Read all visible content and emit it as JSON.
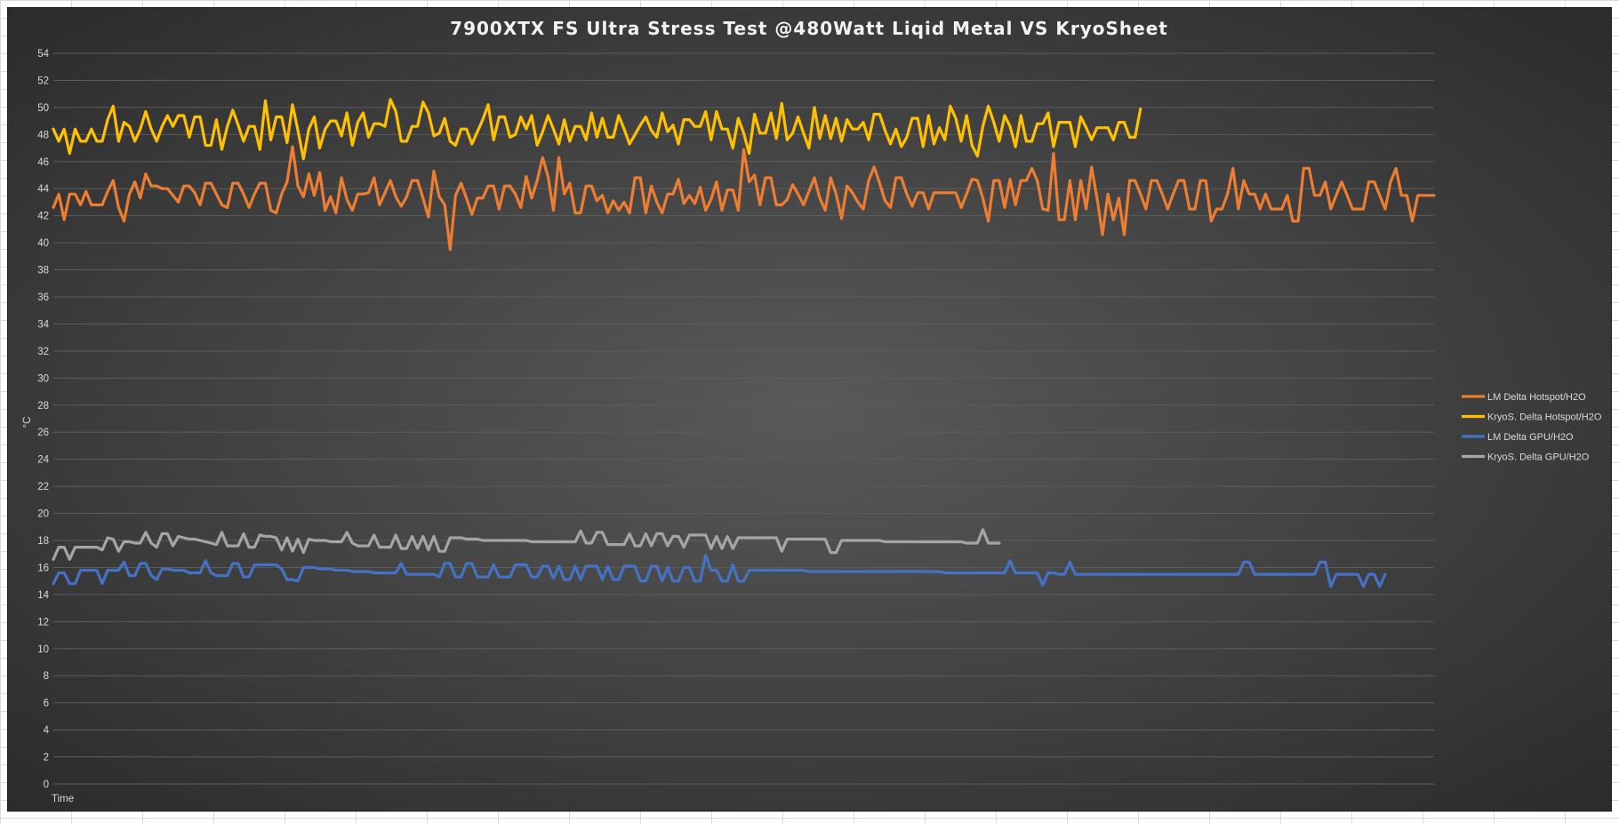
{
  "chart_data": {
    "type": "line",
    "title": "7900XTX FS Ultra Stress Test @480Watt Liqid Metal VS KryoSheet",
    "xlabel": "Time",
    "ylabel": "°C",
    "ylim": [
      0,
      54
    ],
    "ytick_step": 2,
    "grid": true,
    "legend_position": "right",
    "series": [
      {
        "name": "LM Delta Hotspot/H2O",
        "color": "#ed7d31",
        "values": [
          42.6,
          43.6,
          41.7,
          43.6,
          43.6,
          42.8,
          43.8,
          42.8,
          42.8,
          42.8,
          43.8,
          44.6,
          42.6,
          41.6,
          43.6,
          44.5,
          43.3,
          45.1,
          44.2,
          44.2,
          44.0,
          44.0,
          43.5,
          43.0,
          44.2,
          44.2,
          43.7,
          42.8,
          44.4,
          44.4,
          43.6,
          42.8,
          42.6,
          44.4,
          44.4,
          43.6,
          42.6,
          43.6,
          44.4,
          44.4,
          42.4,
          42.2,
          43.6,
          44.5,
          47.1,
          44.2,
          43.4,
          45.1,
          43.5,
          45.2,
          42.4,
          43.4,
          42.2,
          44.8,
          43.2,
          42.4,
          43.6,
          43.6,
          43.7,
          44.8,
          42.8,
          43.7,
          44.6,
          43.4,
          42.7,
          43.4,
          44.6,
          44.6,
          43.3,
          41.9,
          45.3,
          43.4,
          42.8,
          39.5,
          43.5,
          44.4,
          43.3,
          42.1,
          43.3,
          43.3,
          44.2,
          44.2,
          42.5,
          44.2,
          44.2,
          43.6,
          42.6,
          44.9,
          43.3,
          44.6,
          46.3,
          44.9,
          42.4,
          46.3,
          43.6,
          44.4,
          42.2,
          42.2,
          44.2,
          44.2,
          43.1,
          43.5,
          42.2,
          43.1,
          42.4,
          43.0,
          42.2,
          44.8,
          44.8,
          42.2,
          44.2,
          43.0,
          42.2,
          43.6,
          43.6,
          44.7,
          42.9,
          43.5,
          42.9,
          44.1,
          42.4,
          43.2,
          44.5,
          42.4,
          43.9,
          43.9,
          42.4,
          46.9,
          44.5,
          45.0,
          42.8,
          44.8,
          44.8,
          42.8,
          42.8,
          43.2,
          44.3,
          43.6,
          42.8,
          43.8,
          44.8,
          43.3,
          42.4,
          44.8,
          43.6,
          41.8,
          44.2,
          43.7,
          43.0,
          42.5,
          44.6,
          45.6,
          44.4,
          43.1,
          42.6,
          44.8,
          44.8,
          43.6,
          42.7,
          43.7,
          43.7,
          42.5,
          43.7,
          43.7,
          43.7,
          43.7,
          43.7,
          42.6,
          43.6,
          44.7,
          44.6,
          43.3,
          41.6,
          44.6,
          44.6,
          42.6,
          44.7,
          42.8,
          44.6,
          44.6,
          45.5,
          44.6,
          42.5,
          42.4,
          46.6,
          41.7,
          41.7,
          44.6,
          41.7,
          44.6,
          42.5,
          45.6,
          43.3,
          40.6,
          43.6,
          41.7,
          43.3,
          40.6,
          44.6,
          44.6,
          43.6,
          42.5,
          44.6,
          44.6,
          43.6,
          42.5,
          43.6,
          44.6,
          44.6,
          42.5,
          42.5,
          44.6,
          44.6,
          41.6,
          42.5,
          42.5,
          43.6,
          45.5,
          42.5,
          44.6,
          43.6,
          43.6,
          42.5,
          43.6,
          42.5,
          42.5,
          42.5,
          43.5,
          41.6,
          41.6,
          45.5,
          45.5,
          43.5,
          43.5,
          44.5,
          42.5,
          43.5,
          44.5,
          43.5,
          42.5,
          42.5,
          42.5,
          44.5,
          44.5,
          43.5,
          42.5,
          44.5,
          45.5,
          43.5,
          43.5,
          41.6,
          43.5,
          43.5,
          43.5,
          43.5
        ]
      },
      {
        "name": "KryoS. Delta Hotspot/H2O",
        "color": "#ffc000",
        "values": [
          48.4,
          47.5,
          48.4,
          46.6,
          48.4,
          47.5,
          47.5,
          48.4,
          47.5,
          47.5,
          49.1,
          50.1,
          47.5,
          48.9,
          48.6,
          47.5,
          48.4,
          49.7,
          48.4,
          47.5,
          48.6,
          49.4,
          48.6,
          49.4,
          49.4,
          47.8,
          49.3,
          49.3,
          47.2,
          47.2,
          49.1,
          46.9,
          48.6,
          49.8,
          48.7,
          47.5,
          48.6,
          48.6,
          46.9,
          50.5,
          47.6,
          49.3,
          49.3,
          47.4,
          50.2,
          48.3,
          46.2,
          48.4,
          49.3,
          47.0,
          48.4,
          49.0,
          49.0,
          47.9,
          49.6,
          47.2,
          48.9,
          49.6,
          47.8,
          48.8,
          48.8,
          48.6,
          50.6,
          49.7,
          47.5,
          47.5,
          48.6,
          48.6,
          50.4,
          49.6,
          47.9,
          48.1,
          49.2,
          47.5,
          47.2,
          48.4,
          48.4,
          47.3,
          48.2,
          49.1,
          50.2,
          47.6,
          49.3,
          49.3,
          47.8,
          48.0,
          49.3,
          48.4,
          49.4,
          47.2,
          48.2,
          49.4,
          48.4,
          47.3,
          49.1,
          47.5,
          48.6,
          48.6,
          47.6,
          49.6,
          47.8,
          49.2,
          47.8,
          47.8,
          49.4,
          48.4,
          47.3,
          48.0,
          48.7,
          49.3,
          48.3,
          47.8,
          49.6,
          48.2,
          48.7,
          47.3,
          49.1,
          49.1,
          48.6,
          48.6,
          49.7,
          47.6,
          49.7,
          48.4,
          48.4,
          47.0,
          49.2,
          48.1,
          46.6,
          49.5,
          48.1,
          48.1,
          49.6,
          47.7,
          50.3,
          47.6,
          48.1,
          49.3,
          48.1,
          47.0,
          50.0,
          47.7,
          49.4,
          47.7,
          49.2,
          47.5,
          49.1,
          48.4,
          48.4,
          48.9,
          47.6,
          49.5,
          49.5,
          48.3,
          47.3,
          48.4,
          47.1,
          47.8,
          49.2,
          49.2,
          47.1,
          49.4,
          47.3,
          48.5,
          47.6,
          50.1,
          49.2,
          47.5,
          49.4,
          47.2,
          46.4,
          48.6,
          50.1,
          48.9,
          47.5,
          49.4,
          48.6,
          47.1,
          49.4,
          47.5,
          47.5,
          48.8,
          48.8,
          49.6,
          47.1,
          48.9,
          48.9,
          48.9,
          47.1,
          49.3,
          48.5,
          47.6,
          48.5,
          48.5,
          48.5,
          47.6,
          48.9,
          48.9,
          47.8,
          47.8,
          49.9
        ]
      },
      {
        "name": "LM Delta GPU/H2O",
        "color": "#4472c4",
        "values": [
          14.8,
          15.6,
          15.6,
          14.8,
          14.8,
          15.8,
          15.8,
          15.8,
          15.8,
          14.8,
          15.8,
          15.8,
          15.8,
          16.4,
          15.4,
          15.4,
          16.3,
          16.3,
          15.4,
          15.1,
          15.9,
          15.9,
          15.8,
          15.8,
          15.8,
          15.6,
          15.6,
          15.6,
          16.5,
          15.6,
          15.4,
          15.4,
          15.4,
          16.3,
          16.3,
          15.3,
          15.3,
          16.2,
          16.2,
          16.2,
          16.2,
          16.2,
          15.9,
          15.1,
          15.1,
          15.0,
          16.0,
          16.0,
          16.0,
          15.9,
          15.9,
          15.9,
          15.8,
          15.8,
          15.8,
          15.7,
          15.7,
          15.7,
          15.7,
          15.6,
          15.6,
          15.6,
          15.6,
          15.6,
          16.3,
          15.5,
          15.5,
          15.5,
          15.5,
          15.5,
          15.5,
          15.3,
          16.3,
          16.3,
          15.3,
          15.3,
          16.3,
          16.3,
          15.3,
          15.3,
          15.3,
          16.2,
          15.3,
          15.3,
          15.3,
          16.2,
          16.2,
          16.2,
          15.3,
          15.3,
          16.1,
          16.1,
          15.2,
          16.1,
          15.1,
          15.1,
          16.1,
          15.1,
          16.1,
          16.1,
          16.1,
          15.1,
          16.1,
          15.1,
          15.1,
          16.1,
          16.1,
          16.1,
          15.0,
          15.0,
          16.1,
          16.1,
          15.0,
          16.0,
          15.0,
          15.0,
          16.0,
          16.0,
          15.0,
          15.0,
          16.9,
          15.8,
          15.8,
          15.0,
          15.0,
          16.2,
          15.0,
          15.0,
          15.8,
          15.8,
          15.8,
          15.8,
          15.8,
          15.8,
          15.8,
          15.8,
          15.8,
          15.8,
          15.8,
          15.7,
          15.7,
          15.7,
          15.7,
          15.7,
          15.7,
          15.7,
          15.7,
          15.7,
          15.7,
          15.7,
          15.7,
          15.7,
          15.7,
          15.7,
          15.7,
          15.7,
          15.7,
          15.7,
          15.7,
          15.7,
          15.7,
          15.7,
          15.7,
          15.7,
          15.6,
          15.6,
          15.6,
          15.6,
          15.6,
          15.6,
          15.6,
          15.6,
          15.6,
          15.6,
          15.6,
          15.6,
          16.5,
          15.6,
          15.6,
          15.6,
          15.6,
          15.6,
          14.7,
          15.6,
          15.6,
          15.5,
          15.5,
          16.4,
          15.5,
          15.5,
          15.5,
          15.5,
          15.5,
          15.5,
          15.5,
          15.5,
          15.5,
          15.5,
          15.5,
          15.5,
          15.5,
          15.5,
          15.5,
          15.5,
          15.5,
          15.5,
          15.5,
          15.5,
          15.5,
          15.5,
          15.5,
          15.5,
          15.5,
          15.5,
          15.5,
          15.5,
          15.5,
          15.5,
          15.5,
          16.4,
          16.4,
          15.5,
          15.5,
          15.5,
          15.5,
          15.5,
          15.5,
          15.5,
          15.5,
          15.5,
          15.5,
          15.5,
          15.5,
          16.4,
          16.4,
          14.6,
          15.5,
          15.5,
          15.5,
          15.5,
          15.5,
          14.6,
          15.5,
          15.5,
          14.6,
          15.5
        ]
      },
      {
        "name": "KryoS. Delta GPU/H2O",
        "color": "#a5a5a5",
        "values": [
          16.6,
          17.5,
          17.5,
          16.6,
          17.5,
          17.5,
          17.5,
          17.5,
          17.5,
          17.3,
          18.2,
          18.1,
          17.2,
          17.9,
          17.9,
          17.8,
          17.8,
          18.6,
          17.8,
          17.5,
          18.5,
          18.5,
          17.6,
          18.3,
          18.2,
          18.1,
          18.1,
          18.0,
          17.9,
          17.8,
          17.7,
          18.6,
          17.6,
          17.6,
          17.6,
          18.5,
          17.5,
          17.5,
          18.4,
          18.3,
          18.3,
          18.2,
          17.3,
          18.2,
          17.2,
          18.1,
          17.1,
          18.1,
          18.0,
          18.0,
          18.0,
          17.9,
          17.9,
          17.9,
          18.6,
          17.8,
          17.6,
          17.6,
          17.6,
          18.4,
          17.5,
          17.5,
          17.5,
          18.4,
          17.4,
          17.4,
          18.3,
          17.4,
          18.3,
          17.3,
          18.3,
          17.2,
          17.2,
          18.2,
          18.2,
          18.2,
          18.1,
          18.1,
          18.1,
          18.0,
          18.0,
          18.0,
          18.0,
          18.0,
          18.0,
          18.0,
          18.0,
          18.0,
          17.9,
          17.9,
          17.9,
          17.9,
          17.9,
          17.9,
          17.9,
          17.9,
          17.9,
          18.7,
          17.8,
          17.8,
          18.6,
          18.6,
          17.7,
          17.7,
          17.7,
          17.7,
          18.5,
          17.6,
          17.6,
          18.5,
          17.6,
          18.5,
          18.5,
          17.6,
          18.3,
          18.3,
          17.5,
          18.4,
          18.4,
          18.4,
          18.4,
          17.4,
          18.3,
          17.4,
          18.3,
          17.4,
          18.2,
          18.2,
          18.2,
          18.2,
          18.2,
          18.2,
          18.2,
          18.2,
          17.2,
          18.1,
          18.1,
          18.1,
          18.1,
          18.1,
          18.1,
          18.1,
          18.1,
          17.1,
          17.1,
          18.0,
          18.0,
          18.0,
          18.0,
          18.0,
          18.0,
          18.0,
          18.0,
          17.9,
          17.9,
          17.9,
          17.9,
          17.9,
          17.9,
          17.9,
          17.9,
          17.9,
          17.9,
          17.9,
          17.9,
          17.9,
          17.9,
          17.9,
          17.8,
          17.8,
          17.8,
          18.8,
          17.8,
          17.8,
          17.8
        ]
      }
    ]
  }
}
